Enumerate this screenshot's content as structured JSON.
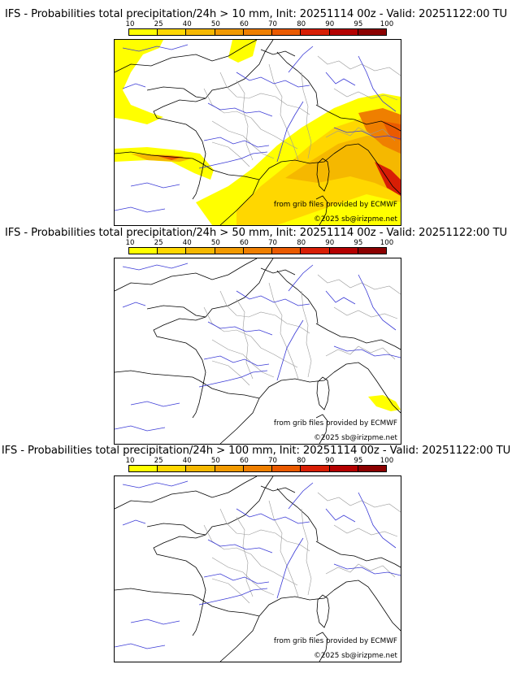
{
  "colorbar": {
    "ticks": [
      "10",
      "25",
      "40",
      "50",
      "60",
      "70",
      "80",
      "90",
      "95",
      "100"
    ],
    "colors": [
      "#ffff00",
      "#ffd700",
      "#f5b800",
      "#f29a00",
      "#ef7f00",
      "#ea5a00",
      "#d81e05",
      "#b40000",
      "#8b0000",
      "#5a0000"
    ]
  },
  "panels": [
    {
      "title": "IFS - Probabilities total precipitation/24h > 10 mm, Init: 20251114 00z - Valid: 20251122:00 TU",
      "threshold_mm": 10,
      "source_text": "from grib files provided by ECMWF",
      "copyright_text": "©2025 sb@irizpme.net"
    },
    {
      "title": "IFS - Probabilities total precipitation/24h > 50 mm, Init: 20251114 00z - Valid: 20251122:00 TU",
      "threshold_mm": 50,
      "source_text": "from grib files provided by ECMWF",
      "copyright_text": "©2025 sb@irizpme.net"
    },
    {
      "title": "IFS - Probabilities total precipitation/24h > 100 mm, Init: 20251114 00z - Valid: 20251122:00 TU",
      "threshold_mm": 100,
      "source_text": "from grib files provided by ECMWF",
      "copyright_text": "©2025 sb@irizpme.net"
    }
  ]
}
